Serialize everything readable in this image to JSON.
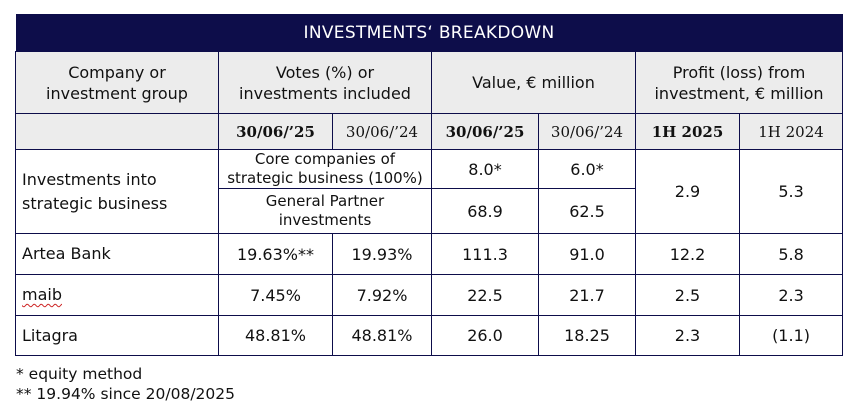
{
  "title": "INVESTMENTS‘ BREAKDOWN",
  "headers": {
    "company": [
      "Company or",
      "investment group"
    ],
    "votes": [
      "Votes (%) or",
      "investments included"
    ],
    "value": "Value, € million",
    "profit": [
      "Profit (loss) from",
      "investment, € million"
    ]
  },
  "subheaders": [
    "30/06/’25",
    "30/06/’24",
    "30/06/’25",
    "30/06/’24",
    "1H 2025",
    "1H 2024"
  ],
  "rows": {
    "strategic": {
      "name": [
        "Investments into",
        "strategic business"
      ],
      "core_label": [
        "Core companies of",
        "strategic business (100%)"
      ],
      "core_value_25": "8.0*",
      "core_value_24": "6.0*",
      "gp_label": [
        "General Partner",
        "investments"
      ],
      "gp_value_25": "68.9",
      "gp_value_24": "62.5",
      "profit_25": "2.9",
      "profit_24": "5.3"
    },
    "artea": {
      "name": "Artea Bank",
      "votes_25": "19.63%**",
      "votes_24": "19.93%",
      "value_25": "111.3",
      "value_24": "91.0",
      "profit_25": "12.2",
      "profit_24": "5.8"
    },
    "maib": {
      "name": "maib",
      "votes_25": "7.45%",
      "votes_24": "7.92%",
      "value_25": "22.5",
      "value_24": "21.7",
      "profit_25": "2.5",
      "profit_24": "2.3"
    },
    "litagra": {
      "name": "Litagra",
      "votes_25": "48.81%",
      "votes_24": "48.81%",
      "value_25": "26.0",
      "value_24": "18.25",
      "profit_25": "2.3",
      "profit_24": "(1.1)"
    }
  },
  "notes": [
    "* equity method",
    "** 19.94% since 20/08/2025"
  ],
  "colors": {
    "header_bg": "#0d0d4a",
    "header_text": "#ffffff",
    "grey_bg": "#ececec",
    "border": "#0d0d4a"
  }
}
